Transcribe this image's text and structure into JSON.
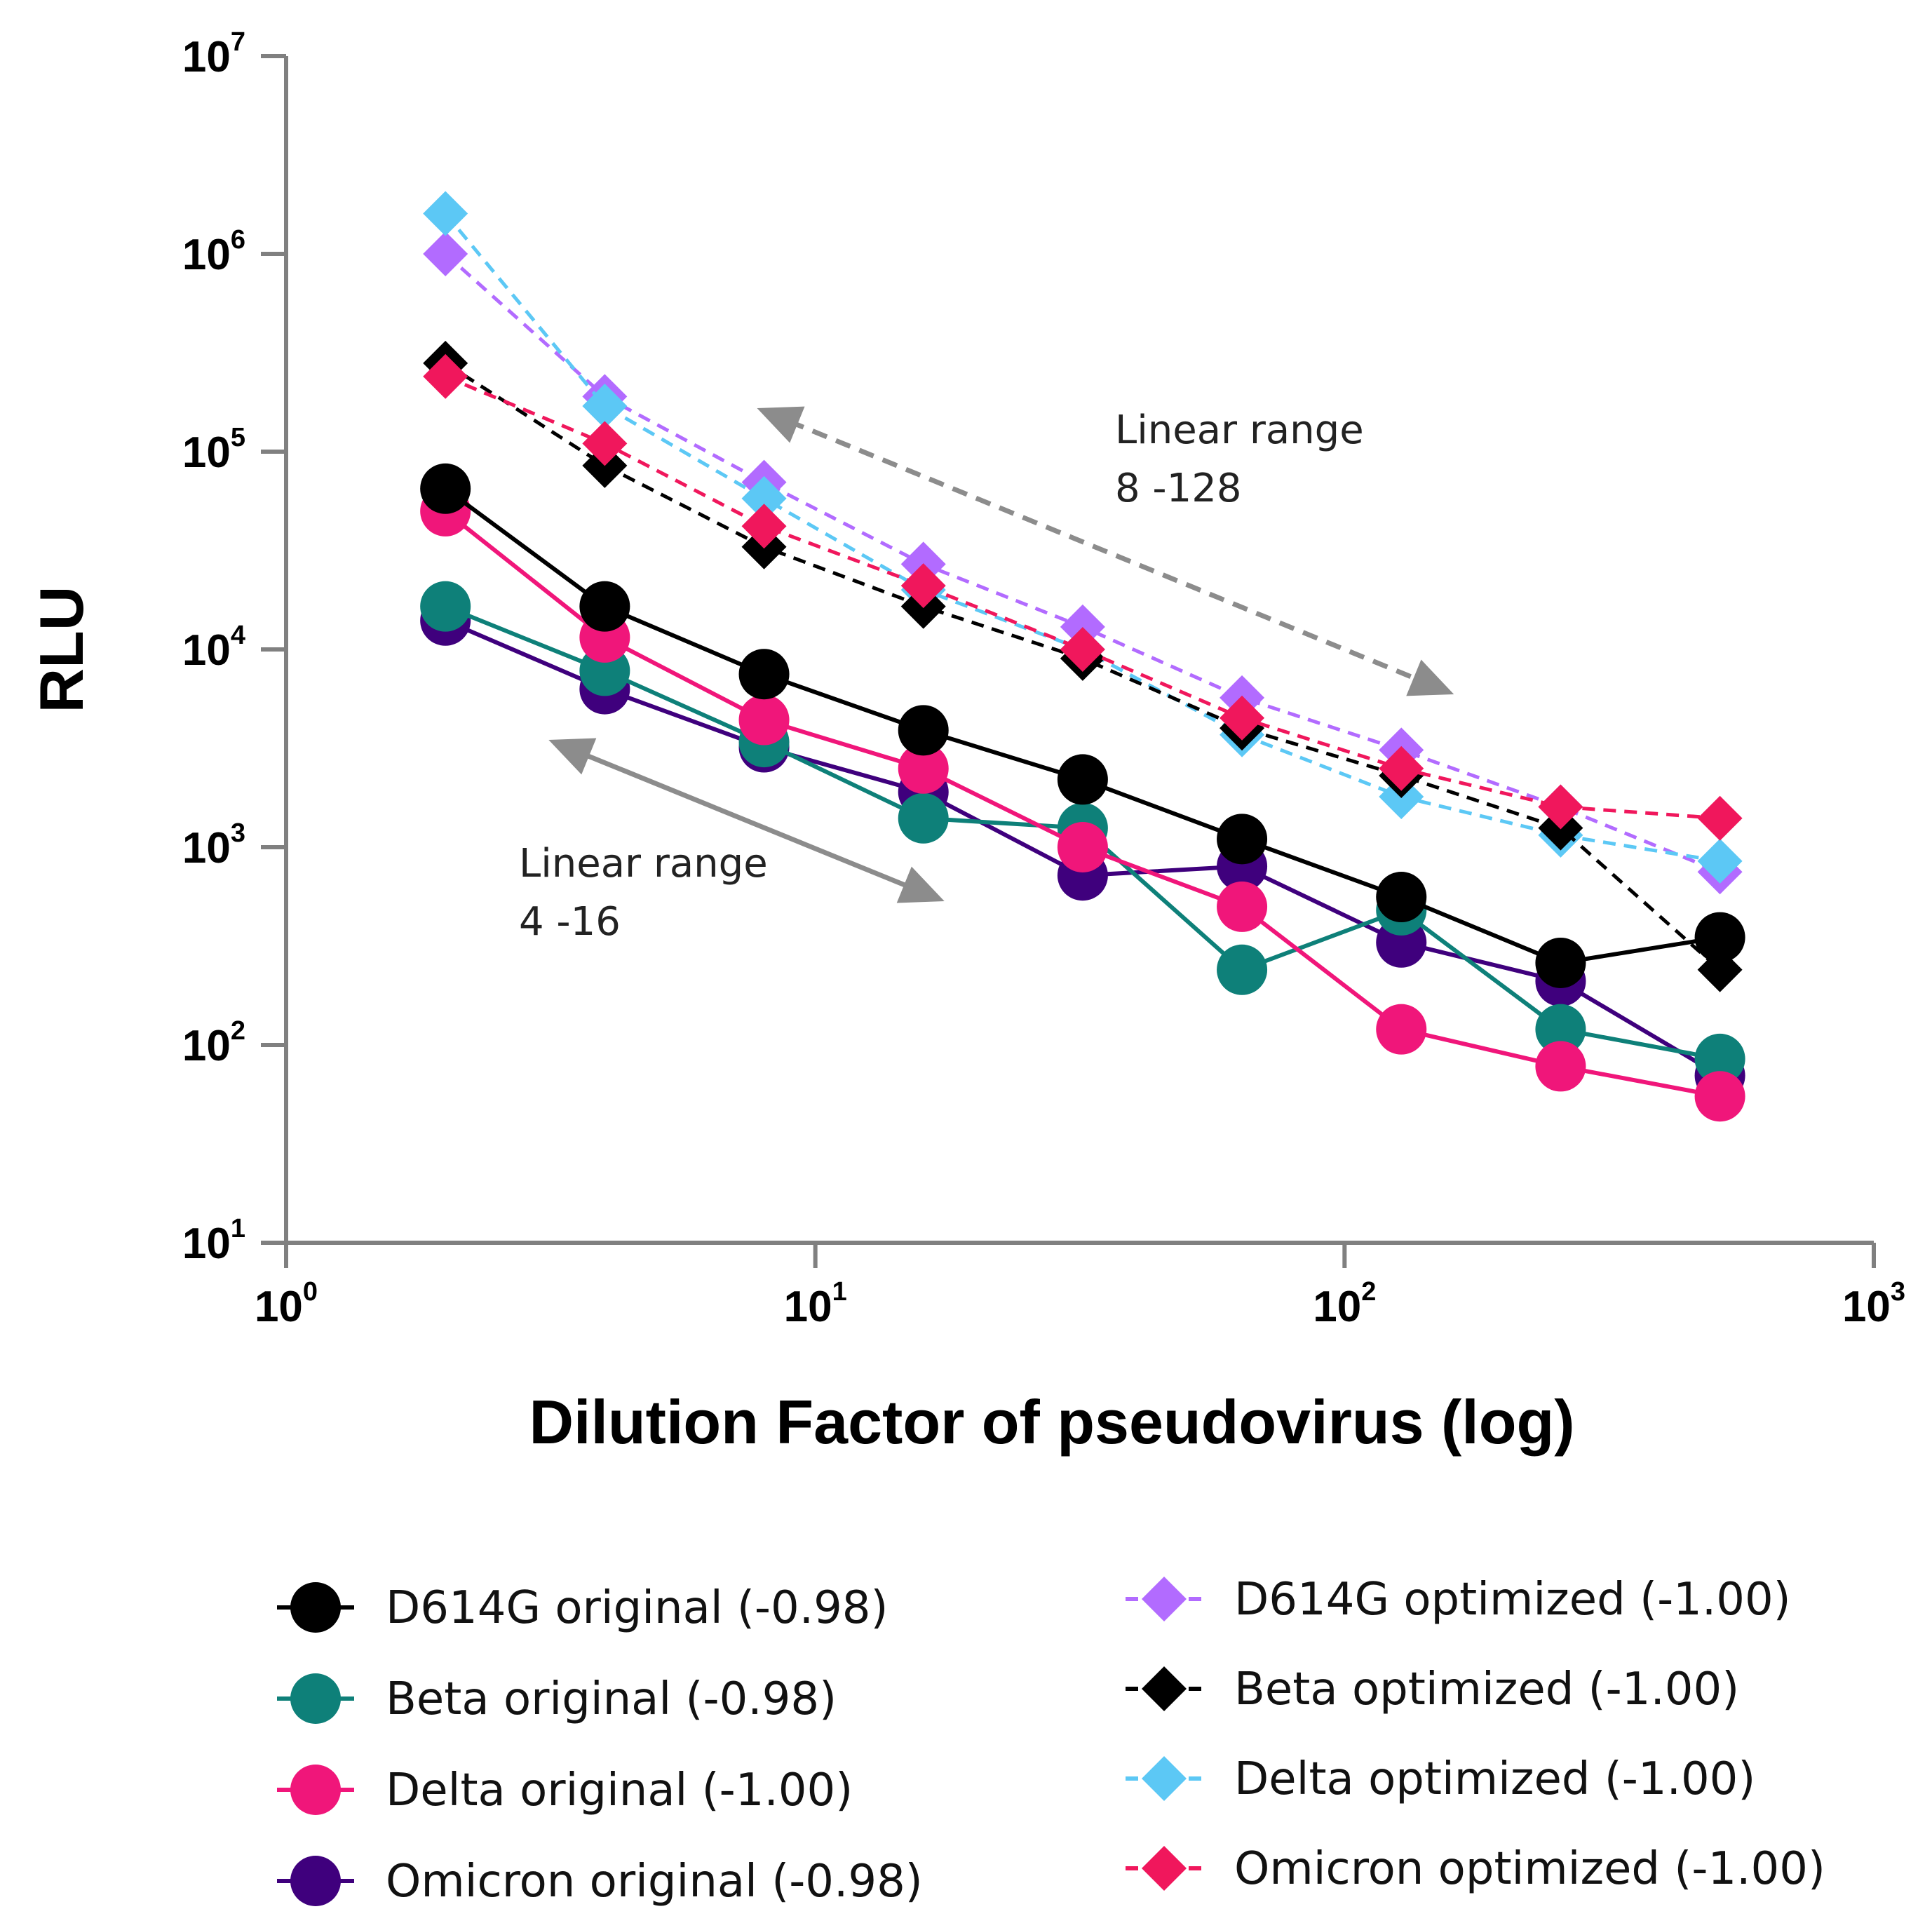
{
  "chart_data": {
    "type": "line",
    "xlabel": "Dilution Factor of pseudovirus (log)",
    "ylabel": "RLU",
    "x_scale": "log",
    "y_scale": "log",
    "xlim": [
      1,
      1000
    ],
    "ylim": [
      10,
      10000000
    ],
    "x_ticks": [
      {
        "value": 1,
        "base": "10",
        "exp": "0"
      },
      {
        "value": 10,
        "base": "10",
        "exp": "1"
      },
      {
        "value": 100,
        "base": "10",
        "exp": "2"
      },
      {
        "value": 1000,
        "base": "10",
        "exp": "3"
      }
    ],
    "y_ticks": [
      {
        "value": 10,
        "base": "10",
        "exp": "1"
      },
      {
        "value": 100,
        "base": "10",
        "exp": "2"
      },
      {
        "value": 1000,
        "base": "10",
        "exp": "3"
      },
      {
        "value": 10000,
        "base": "10",
        "exp": "4"
      },
      {
        "value": 100000,
        "base": "10",
        "exp": "5"
      },
      {
        "value": 1000000,
        "base": "10",
        "exp": "6"
      },
      {
        "value": 10000000,
        "base": "10",
        "exp": "7"
      }
    ],
    "x": [
      2,
      4,
      8,
      16,
      32,
      64,
      128,
      256,
      512
    ],
    "series": [
      {
        "name": "D614G optimized (-1.00)",
        "color": "#b26bff",
        "marker": "diamond",
        "dashed": true,
        "values": [
          1000000,
          190000,
          70000,
          27000,
          13000,
          5700,
          3100,
          1600,
          750
        ]
      },
      {
        "name": "Delta optimized (-1.00)",
        "color": "#5cc8f5",
        "marker": "diamond",
        "dashed": true,
        "values": [
          1600000,
          170000,
          58000,
          20000,
          10000,
          3700,
          1800,
          1150,
          850
        ]
      },
      {
        "name": "Beta optimized (-1.00)",
        "color": "#000000",
        "marker": "diamond",
        "dashed": true,
        "values": [
          280000,
          85000,
          33000,
          16500,
          9000,
          4000,
          2300,
          1250,
          240
        ]
      },
      {
        "name": "Omicron optimized (-1.00)",
        "color": "#f0175c",
        "marker": "diamond",
        "dashed": true,
        "values": [
          240000,
          110000,
          42000,
          21000,
          10000,
          4500,
          2500,
          1600,
          1400
        ]
      },
      {
        "name": "Omicron original (-0.98)",
        "color": "#3f007d",
        "marker": "circle",
        "dashed": false,
        "values": [
          14000,
          6300,
          3200,
          1900,
          720,
          800,
          330,
          210,
          70
        ]
      },
      {
        "name": "Beta original (-0.98)",
        "color": "#0e8079",
        "marker": "circle",
        "dashed": false,
        "values": [
          16500,
          7800,
          3400,
          1400,
          1250,
          240,
          480,
          120,
          85
        ]
      },
      {
        "name": "Delta original (-1.00)",
        "color": "#f0167a",
        "marker": "circle",
        "dashed": false,
        "values": [
          50000,
          11500,
          4400,
          2500,
          1000,
          500,
          120,
          78,
          55
        ]
      },
      {
        "name": "D614G original  (-0.98)",
        "color": "#000000",
        "marker": "circle",
        "dashed": false,
        "values": [
          65000,
          16500,
          7500,
          3900,
          2200,
          1100,
          560,
          260,
          350
        ]
      }
    ],
    "annotations": [
      {
        "lines": [
          "Linear range",
          "8 -128"
        ],
        "arrow_from_x": 8,
        "arrow_to_x": 128
      },
      {
        "lines": [
          "Linear range",
          "4 -16"
        ],
        "arrow_from_x": 4,
        "arrow_to_x": 16
      }
    ],
    "legend_placement": "bottom",
    "legend": [
      {
        "label": "D614G original  (-0.98)",
        "color": "#000000",
        "marker": "circle",
        "dashed": false
      },
      {
        "label": "Beta original (-0.98)",
        "color": "#0e8079",
        "marker": "circle",
        "dashed": false
      },
      {
        "label": "Delta original (-1.00)",
        "color": "#f0167a",
        "marker": "circle",
        "dashed": false
      },
      {
        "label": "Omicron original (-0.98)",
        "color": "#3f007d",
        "marker": "circle",
        "dashed": false
      },
      {
        "label": "D614G optimized (-1.00)",
        "color": "#b26bff",
        "marker": "diamond",
        "dashed": true
      },
      {
        "label": "Beta optimized (-1.00)",
        "color": "#000000",
        "marker": "diamond",
        "dashed": true
      },
      {
        "label": "Delta optimized (-1.00)",
        "color": "#5cc8f5",
        "marker": "diamond",
        "dashed": true
      },
      {
        "label": "Omicron optimized (-1.00)",
        "color": "#f0175c",
        "marker": "diamond",
        "dashed": true
      }
    ]
  }
}
